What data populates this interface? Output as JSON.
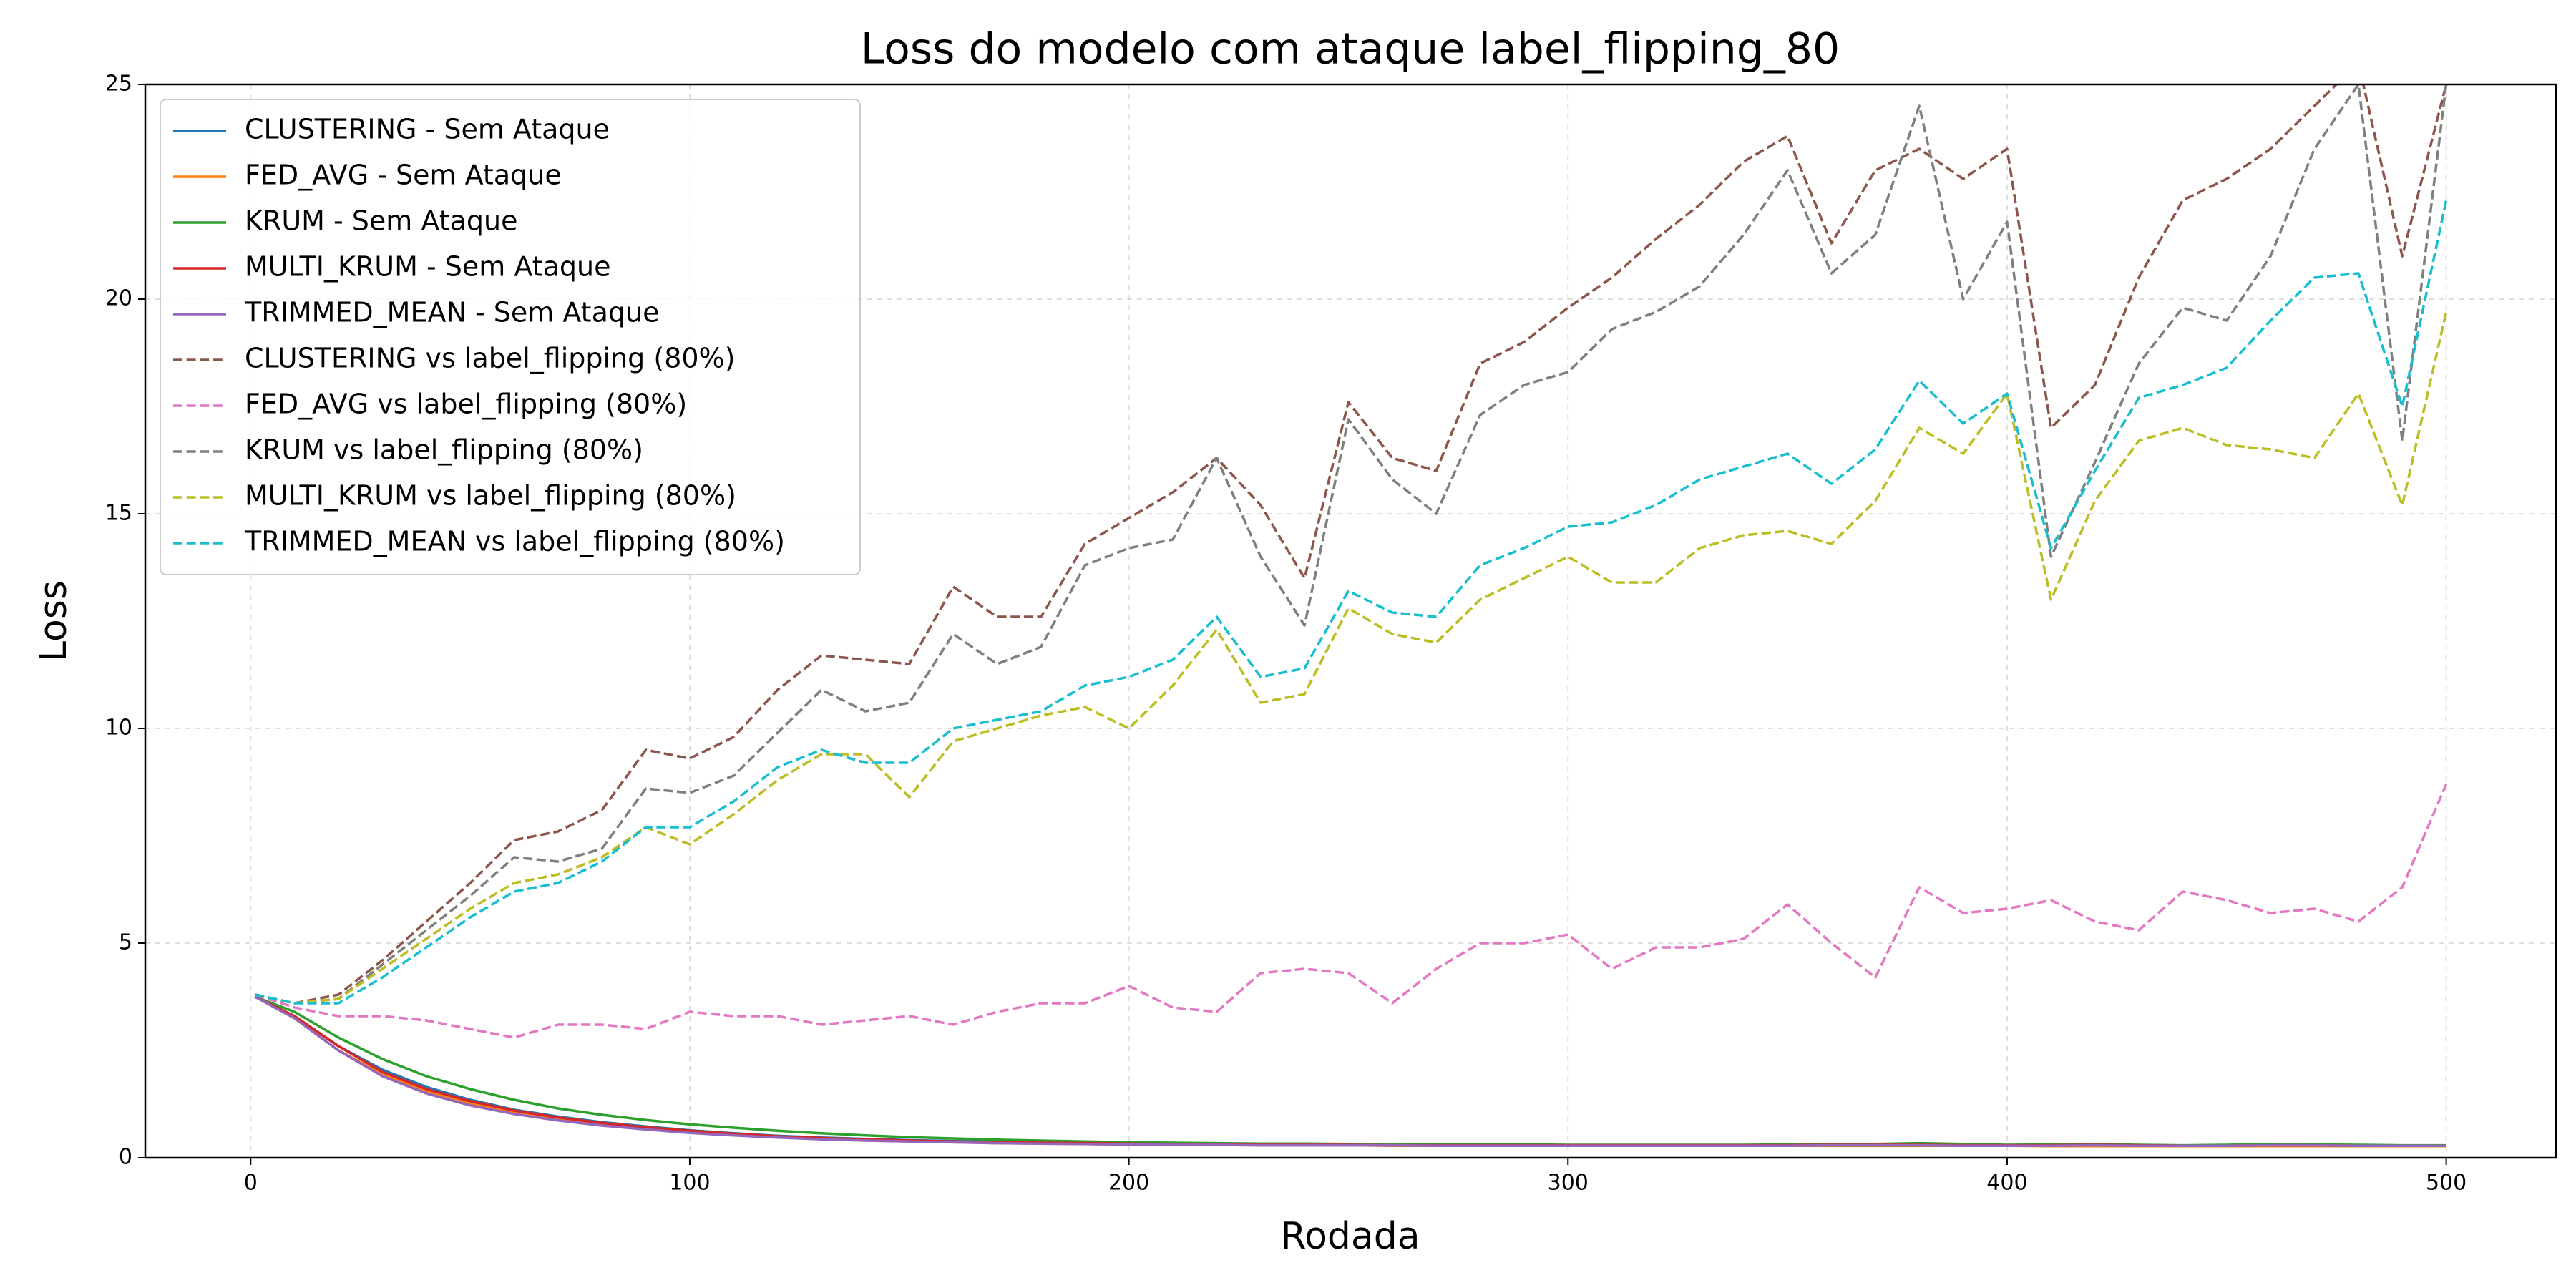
{
  "chart_data": {
    "type": "line",
    "title": "Loss do modelo com ataque label_flipping_80",
    "x_label": "Rodada",
    "y_label": "Loss",
    "x": [
      1,
      10,
      20,
      30,
      40,
      50,
      60,
      70,
      80,
      90,
      100,
      110,
      120,
      130,
      140,
      150,
      160,
      170,
      180,
      190,
      200,
      210,
      220,
      230,
      240,
      250,
      260,
      270,
      280,
      290,
      300,
      310,
      320,
      330,
      340,
      350,
      360,
      370,
      380,
      390,
      400,
      410,
      420,
      430,
      440,
      450,
      460,
      470,
      480,
      490,
      500
    ],
    "xlim": [
      -24,
      525
    ],
    "xticks": [
      0,
      100,
      200,
      300,
      400,
      500
    ],
    "ylim": [
      0,
      25
    ],
    "yticks": [
      0,
      5,
      10,
      15,
      20,
      25
    ],
    "grid": true,
    "legend": "upper left",
    "series": [
      {
        "name": "CLUSTERING - Sem Ataque",
        "color": "#1f77b4",
        "linestyle": "solid",
        "values": [
          3.75,
          3.3,
          2.6,
          2.05,
          1.65,
          1.35,
          1.12,
          0.96,
          0.83,
          0.73,
          0.64,
          0.57,
          0.51,
          0.47,
          0.44,
          0.41,
          0.39,
          0.37,
          0.35,
          0.34,
          0.33,
          0.32,
          0.31,
          0.31,
          0.3,
          0.3,
          0.3,
          0.3,
          0.29,
          0.29,
          0.29,
          0.29,
          0.29,
          0.29,
          0.29,
          0.29,
          0.29,
          0.3,
          0.3,
          0.29,
          0.29,
          0.28,
          0.28,
          0.28,
          0.28,
          0.28,
          0.28,
          0.29,
          0.29,
          0.28,
          0.28
        ]
      },
      {
        "name": "FED_AVG - Sem Ataque",
        "color": "#ff7f0e",
        "linestyle": "solid",
        "values": [
          3.75,
          3.25,
          2.5,
          1.95,
          1.55,
          1.27,
          1.06,
          0.9,
          0.78,
          0.68,
          0.6,
          0.53,
          0.48,
          0.44,
          0.41,
          0.38,
          0.36,
          0.34,
          0.33,
          0.32,
          0.31,
          0.3,
          0.3,
          0.29,
          0.29,
          0.29,
          0.28,
          0.28,
          0.28,
          0.28,
          0.28,
          0.28,
          0.28,
          0.28,
          0.28,
          0.28,
          0.28,
          0.28,
          0.28,
          0.28,
          0.28,
          0.27,
          0.27,
          0.27,
          0.27,
          0.27,
          0.27,
          0.27,
          0.27,
          0.27,
          0.27
        ]
      },
      {
        "name": "KRUM - Sem Ataque",
        "color": "#2ca02c",
        "linestyle": "solid",
        "values": [
          3.75,
          3.4,
          2.8,
          2.3,
          1.9,
          1.6,
          1.35,
          1.15,
          1.0,
          0.88,
          0.78,
          0.7,
          0.63,
          0.57,
          0.52,
          0.48,
          0.45,
          0.42,
          0.4,
          0.38,
          0.36,
          0.35,
          0.34,
          0.33,
          0.33,
          0.32,
          0.32,
          0.31,
          0.31,
          0.31,
          0.3,
          0.3,
          0.3,
          0.3,
          0.3,
          0.31,
          0.31,
          0.32,
          0.34,
          0.32,
          0.3,
          0.31,
          0.32,
          0.3,
          0.29,
          0.3,
          0.32,
          0.31,
          0.3,
          0.29,
          0.29
        ]
      },
      {
        "name": "MULTI_KRUM - Sem Ataque",
        "color": "#d62728",
        "linestyle": "solid",
        "values": [
          3.75,
          3.3,
          2.6,
          2.0,
          1.6,
          1.32,
          1.1,
          0.94,
          0.81,
          0.71,
          0.63,
          0.56,
          0.5,
          0.46,
          0.43,
          0.4,
          0.38,
          0.36,
          0.35,
          0.34,
          0.33,
          0.32,
          0.31,
          0.3,
          0.3,
          0.3,
          0.29,
          0.29,
          0.29,
          0.29,
          0.29,
          0.29,
          0.29,
          0.29,
          0.29,
          0.29,
          0.3,
          0.3,
          0.3,
          0.29,
          0.29,
          0.29,
          0.3,
          0.29,
          0.28,
          0.28,
          0.29,
          0.29,
          0.28,
          0.28,
          0.28
        ]
      },
      {
        "name": "TRIMMED_MEAN - Sem Ataque",
        "color": "#9467bd",
        "linestyle": "solid",
        "values": [
          3.75,
          3.25,
          2.5,
          1.9,
          1.5,
          1.22,
          1.02,
          0.87,
          0.75,
          0.66,
          0.58,
          0.52,
          0.47,
          0.43,
          0.4,
          0.38,
          0.36,
          0.34,
          0.33,
          0.32,
          0.31,
          0.3,
          0.3,
          0.29,
          0.29,
          0.29,
          0.29,
          0.28,
          0.28,
          0.28,
          0.28,
          0.28,
          0.28,
          0.28,
          0.28,
          0.28,
          0.29,
          0.29,
          0.29,
          0.28,
          0.28,
          0.28,
          0.29,
          0.28,
          0.28,
          0.28,
          0.29,
          0.29,
          0.28,
          0.28,
          0.28
        ]
      },
      {
        "name": "CLUSTERING vs label_flipping (80%)",
        "color": "#8c564b",
        "linestyle": "dashed",
        "values": [
          3.8,
          3.6,
          3.8,
          4.6,
          5.5,
          6.4,
          7.4,
          7.6,
          8.1,
          9.5,
          9.3,
          9.8,
          10.9,
          11.7,
          11.6,
          11.5,
          13.3,
          12.6,
          12.6,
          14.3,
          14.9,
          15.5,
          16.3,
          15.2,
          13.5,
          17.6,
          16.3,
          16.0,
          18.5,
          19.0,
          19.8,
          20.5,
          21.4,
          22.2,
          23.2,
          23.8,
          21.3,
          23.0,
          23.5,
          22.8,
          23.5,
          17.0,
          18.0,
          20.5,
          22.3,
          22.8,
          23.5,
          24.5,
          25.5,
          21.0,
          25.0
        ]
      },
      {
        "name": "FED_AVG vs label_flipping (80%)",
        "color": "#e377c2",
        "linestyle": "dashed",
        "values": [
          3.8,
          3.5,
          3.3,
          3.3,
          3.2,
          3.0,
          2.8,
          3.1,
          3.1,
          3.0,
          3.4,
          3.3,
          3.3,
          3.1,
          3.2,
          3.3,
          3.1,
          3.4,
          3.6,
          3.6,
          4.0,
          3.5,
          3.4,
          4.3,
          4.4,
          4.3,
          3.6,
          4.4,
          5.0,
          5.0,
          5.2,
          4.4,
          4.9,
          4.9,
          5.1,
          5.9,
          5.0,
          4.2,
          6.3,
          5.7,
          5.8,
          6.0,
          5.5,
          5.3,
          6.2,
          6.0,
          5.7,
          5.8,
          5.5,
          6.3,
          8.7
        ]
      },
      {
        "name": "KRUM vs label_flipping (80%)",
        "color": "#7f7f7f",
        "linestyle": "dashed",
        "values": [
          3.8,
          3.6,
          3.7,
          4.5,
          5.3,
          6.1,
          7.0,
          6.9,
          7.2,
          8.6,
          8.5,
          8.9,
          9.9,
          10.9,
          10.4,
          10.6,
          12.2,
          11.5,
          11.9,
          13.8,
          14.2,
          14.4,
          16.3,
          14.0,
          12.4,
          17.2,
          15.8,
          15.0,
          17.3,
          18.0,
          18.3,
          19.3,
          19.7,
          20.3,
          21.5,
          23.0,
          20.6,
          21.5,
          24.5,
          20.0,
          21.8,
          14.0,
          16.2,
          18.5,
          19.8,
          19.5,
          21.0,
          23.5,
          25.0,
          16.7,
          25.0
        ]
      },
      {
        "name": "MULTI_KRUM vs label_flipping (80%)",
        "color": "#bcbd22",
        "linestyle": "dashed",
        "values": [
          3.8,
          3.6,
          3.7,
          4.4,
          5.1,
          5.8,
          6.4,
          6.6,
          7.0,
          7.7,
          7.3,
          8.0,
          8.8,
          9.4,
          9.4,
          8.4,
          9.7,
          10.0,
          10.3,
          10.5,
          10.0,
          11.0,
          12.3,
          10.6,
          10.8,
          12.8,
          12.2,
          12.0,
          13.0,
          13.5,
          14.0,
          13.4,
          13.4,
          14.2,
          14.5,
          14.6,
          14.3,
          15.3,
          17.0,
          16.4,
          17.8,
          13.0,
          15.3,
          16.7,
          17.0,
          16.6,
          16.5,
          16.3,
          17.8,
          15.2,
          19.7
        ]
      },
      {
        "name": "TRIMMED_MEAN vs label_flipping (80%)",
        "color": "#17becf",
        "linestyle": "dashed",
        "values": [
          3.8,
          3.6,
          3.6,
          4.2,
          4.9,
          5.6,
          6.2,
          6.4,
          6.9,
          7.7,
          7.7,
          8.3,
          9.1,
          9.5,
          9.2,
          9.2,
          10.0,
          10.2,
          10.4,
          11.0,
          11.2,
          11.6,
          12.6,
          11.2,
          11.4,
          13.2,
          12.7,
          12.6,
          13.8,
          14.2,
          14.7,
          14.8,
          15.2,
          15.8,
          16.1,
          16.4,
          15.7,
          16.5,
          18.1,
          17.1,
          17.8,
          14.2,
          16.0,
          17.7,
          18.0,
          18.4,
          19.5,
          20.5,
          20.6,
          17.5,
          22.3
        ]
      }
    ]
  }
}
